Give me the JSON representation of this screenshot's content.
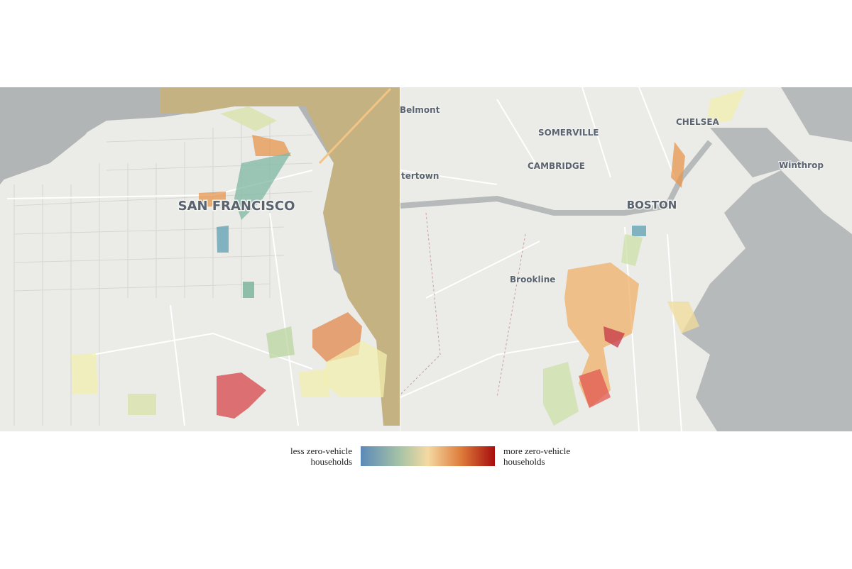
{
  "maps": [
    {
      "labels": [
        "SAN FRANCISCO"
      ]
    },
    {
      "labels": [
        "Belmont",
        "SOMERVILLE",
        "CHELSEA",
        "CAMBRIDGE",
        "Winthrop",
        "tertown",
        "BOSTON",
        "Brookline"
      ]
    }
  ],
  "legend": {
    "low_label": [
      "less zero-vehicle",
      "households"
    ],
    "high_label": [
      "more zero-vehicle",
      "households"
    ]
  }
}
